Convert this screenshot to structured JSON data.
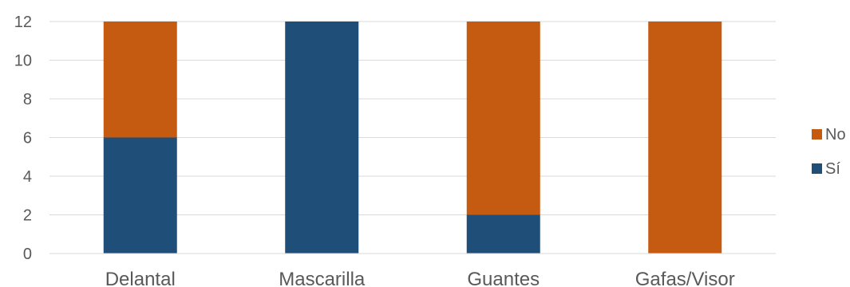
{
  "chart_data": {
    "type": "bar",
    "stacked": true,
    "categories": [
      "Delantal",
      "Mascarilla",
      "Guantes",
      "Gafas/Visor"
    ],
    "series": [
      {
        "name": "Sí",
        "values": [
          6,
          12,
          2,
          0
        ],
        "color": "#1F4E79"
      },
      {
        "name": "No",
        "values": [
          6,
          0,
          10,
          12
        ],
        "color": "#C55A11"
      }
    ],
    "title": "",
    "xlabel": "",
    "ylabel": "",
    "ylim": [
      0,
      12
    ],
    "yticks": [
      0,
      2,
      4,
      6,
      8,
      10,
      12
    ],
    "grid": true,
    "legend": {
      "position": "right",
      "order": [
        "No",
        "Sí"
      ]
    },
    "gridline_color": "#D9D9D9",
    "axis_color": "#D9D9D9"
  }
}
